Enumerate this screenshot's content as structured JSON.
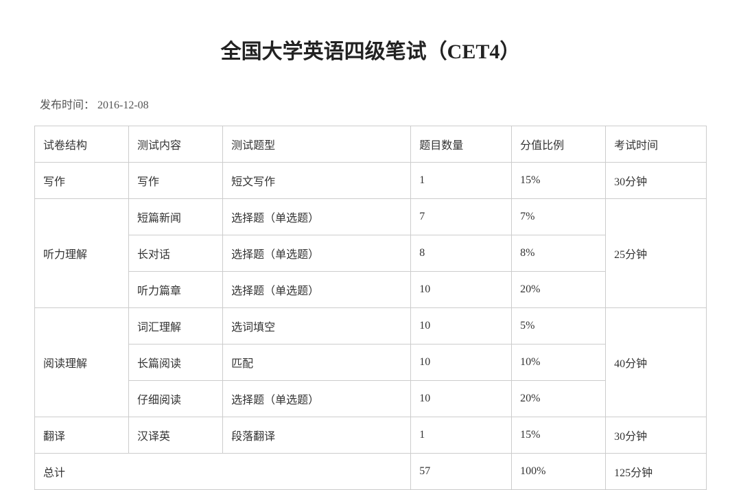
{
  "title": "全国大学英语四级笔试（CET4）",
  "publishLabel": "发布时间：",
  "publishDate": "2016-12-08",
  "table": {
    "headers": {
      "structure": "试卷结构",
      "content": "测试内容",
      "type": "测试题型",
      "count": "题目数量",
      "ratio": "分值比例",
      "time": "考试时间"
    },
    "sections": [
      {
        "structure": "写作",
        "time": "30分钟",
        "rows": [
          {
            "content": "写作",
            "type": "短文写作",
            "count": "1",
            "ratio": "15%"
          }
        ]
      },
      {
        "structure": "听力理解",
        "time": "25分钟",
        "rows": [
          {
            "content": "短篇新闻",
            "type": "选择题（单选题）",
            "count": "7",
            "ratio": "7%"
          },
          {
            "content": "长对话",
            "type": "选择题（单选题）",
            "count": "8",
            "ratio": "8%"
          },
          {
            "content": "听力篇章",
            "type": "选择题（单选题）",
            "count": "10",
            "ratio": "20%"
          }
        ]
      },
      {
        "structure": "阅读理解",
        "time": "40分钟",
        "rows": [
          {
            "content": "词汇理解",
            "type": "选词填空",
            "count": "10",
            "ratio": "5%"
          },
          {
            "content": "长篇阅读",
            "type": "匹配",
            "count": "10",
            "ratio": "10%"
          },
          {
            "content": "仔细阅读",
            "type": "选择题（单选题）",
            "count": "10",
            "ratio": "20%"
          }
        ]
      },
      {
        "structure": "翻译",
        "time": "30分钟",
        "rows": [
          {
            "content": "汉译英",
            "type": "段落翻译",
            "count": "1",
            "ratio": "15%"
          }
        ]
      }
    ],
    "total": {
      "label": "总计",
      "count": "57",
      "ratio": "100%",
      "time": "125分钟"
    }
  },
  "style": {
    "borderColor": "#cccccc",
    "textColor": "#333333",
    "background": "#ffffff",
    "titleFontSize": 30,
    "cellFontSize": 16
  }
}
